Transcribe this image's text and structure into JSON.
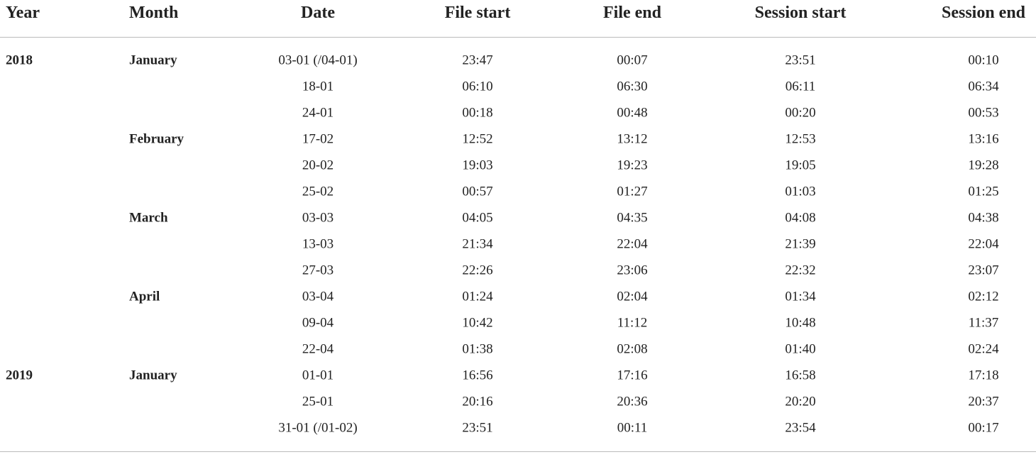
{
  "table": {
    "header": [
      "Year",
      "Month",
      "Date",
      "File start",
      "File end",
      "Session start",
      "Session end"
    ],
    "rows": [
      [
        "2018",
        "January",
        "03-01 (/04-01)",
        "23:47",
        "00:07",
        "23:51",
        "00:10"
      ],
      [
        null,
        null,
        "18-01",
        "06:10",
        "06:30",
        "06:11",
        "06:34"
      ],
      [
        null,
        null,
        "24-01",
        "00:18",
        "00:48",
        "00:20",
        "00:53"
      ],
      [
        null,
        "February",
        "17-02",
        "12:52",
        "13:12",
        "12:53",
        "13:16"
      ],
      [
        null,
        null,
        "20-02",
        "19:03",
        "19:23",
        "19:05",
        "19:28"
      ],
      [
        null,
        null,
        "25-02",
        "00:57",
        "01:27",
        "01:03",
        "01:25"
      ],
      [
        null,
        "March",
        "03-03",
        "04:05",
        "04:35",
        "04:08",
        "04:38"
      ],
      [
        null,
        null,
        "13-03",
        "21:34",
        "22:04",
        "21:39",
        "22:04"
      ],
      [
        null,
        null,
        "27-03",
        "22:26",
        "23:06",
        "22:32",
        "23:07"
      ],
      [
        null,
        "April",
        "03-04",
        "01:24",
        "02:04",
        "01:34",
        "02:12"
      ],
      [
        null,
        null,
        "09-04",
        "10:42",
        "11:12",
        "10:48",
        "11:37"
      ],
      [
        null,
        null,
        "22-04",
        "01:38",
        "02:08",
        "01:40",
        "02:24"
      ],
      [
        "2019",
        "January",
        "01-01",
        "16:56",
        "17:16",
        "16:58",
        "17:18"
      ],
      [
        null,
        null,
        "25-01",
        "20:16",
        "20:36",
        "20:20",
        "20:37"
      ],
      [
        null,
        null,
        "31-01 (/01-02)",
        "23:51",
        "00:11",
        "23:54",
        "00:17"
      ]
    ]
  }
}
